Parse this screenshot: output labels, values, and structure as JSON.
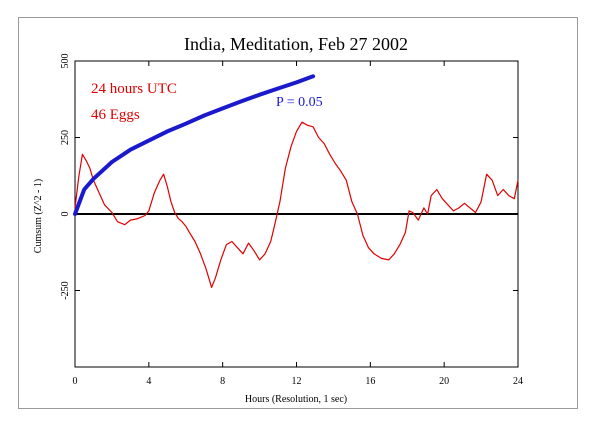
{
  "chart_data": {
    "type": "line",
    "title": "India, Meditation, Feb 27 2002",
    "xlabel": "Hours (Resolution, 1 sec)",
    "ylabel": "Cumsum (Z^2 - 1)",
    "xlim": [
      0,
      24
    ],
    "ylim": [
      -500,
      500
    ],
    "xticks": [
      "0",
      "4",
      "8",
      "12",
      "16",
      "20",
      "24"
    ],
    "yticks": [
      "500",
      "250",
      "0",
      "-250"
    ],
    "annotations": [
      "24 hours UTC",
      "46 Eggs",
      "P = 0.05"
    ],
    "series": [
      {
        "color": "#e00000",
        "x": [
          0,
          0.2,
          0.4,
          0.6,
          0.8,
          1.0,
          1.3,
          1.6,
          2.0,
          2.3,
          2.7,
          3.0,
          3.4,
          3.8,
          4.0,
          4.3,
          4.6,
          4.8,
          5.0,
          5.2,
          5.4,
          5.6,
          5.8,
          6.0,
          6.2,
          6.5,
          6.8,
          7.1,
          7.4,
          7.6,
          7.9,
          8.2,
          8.5,
          8.8,
          9.1,
          9.4,
          9.7,
          10.0,
          10.3,
          10.6,
          10.8,
          11.1,
          11.4,
          11.7,
          12.0,
          12.3,
          12.6,
          12.9,
          13.2,
          13.5,
          13.8,
          14.1,
          14.4,
          14.7,
          15.0,
          15.3,
          15.6,
          15.9,
          16.2,
          16.6,
          17.0,
          17.3,
          17.6,
          17.9,
          18.1,
          18.3,
          18.6,
          18.9,
          19.1,
          19.3,
          19.6,
          19.9,
          20.2,
          20.5,
          20.8,
          21.1,
          21.4,
          21.7,
          22.0,
          22.3,
          22.6,
          22.9,
          23.2,
          23.5,
          23.8,
          24.0
        ],
        "y": [
          20,
          120,
          195,
          175,
          150,
          110,
          70,
          30,
          5,
          -25,
          -35,
          -20,
          -15,
          -5,
          10,
          70,
          110,
          130,
          90,
          40,
          5,
          -15,
          -25,
          -40,
          -60,
          -90,
          -130,
          -180,
          -240,
          -210,
          -150,
          -100,
          -90,
          -110,
          -130,
          -95,
          -120,
          -150,
          -130,
          -90,
          -40,
          40,
          150,
          220,
          270,
          300,
          290,
          285,
          250,
          230,
          195,
          165,
          140,
          110,
          40,
          0,
          -70,
          -110,
          -130,
          -145,
          -150,
          -130,
          -100,
          -60,
          10,
          5,
          -20,
          20,
          0,
          60,
          80,
          50,
          30,
          10,
          20,
          35,
          20,
          5,
          40,
          130,
          110,
          60,
          80,
          60,
          50,
          110
        ]
      },
      {
        "name": "P = 0.05",
        "color": "#1a1acc",
        "x": [
          0,
          0.5,
          1,
          2,
          3,
          4,
          5,
          6,
          7,
          8,
          9,
          10,
          11,
          12,
          12.9
        ],
        "y": [
          0,
          80,
          115,
          170,
          210,
          240,
          270,
          295,
          322,
          345,
          368,
          390,
          410,
          430,
          450
        ]
      }
    ],
    "zero_line": 0,
    "grid": false
  }
}
